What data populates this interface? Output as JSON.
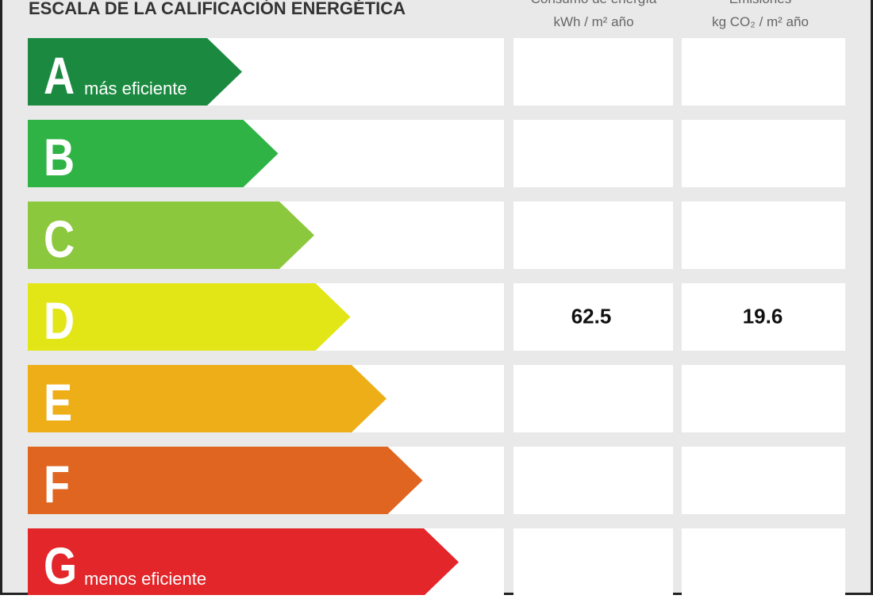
{
  "header": {
    "title": "ESCALA DE LA CALIFICACIÓN ENERGÉTICA",
    "columns": [
      {
        "title": "Consumo de energía",
        "unit": "kWh / m² año"
      },
      {
        "title": "Emisiones",
        "unit": "kg CO₂ / m² año"
      }
    ]
  },
  "rows": [
    {
      "letter": "A",
      "note": "más eficiente",
      "color": "#1b8a40"
    },
    {
      "letter": "B",
      "color": "#2fb345"
    },
    {
      "letter": "C",
      "color": "#8cc83e"
    },
    {
      "letter": "D",
      "color": "#e2e617",
      "consumption": 62.5,
      "emissions": 19.6
    },
    {
      "letter": "E",
      "color": "#edae18"
    },
    {
      "letter": "F",
      "color": "#df6520"
    },
    {
      "letter": "G",
      "note": "menos eficiente",
      "color": "#e2262a"
    }
  ]
}
